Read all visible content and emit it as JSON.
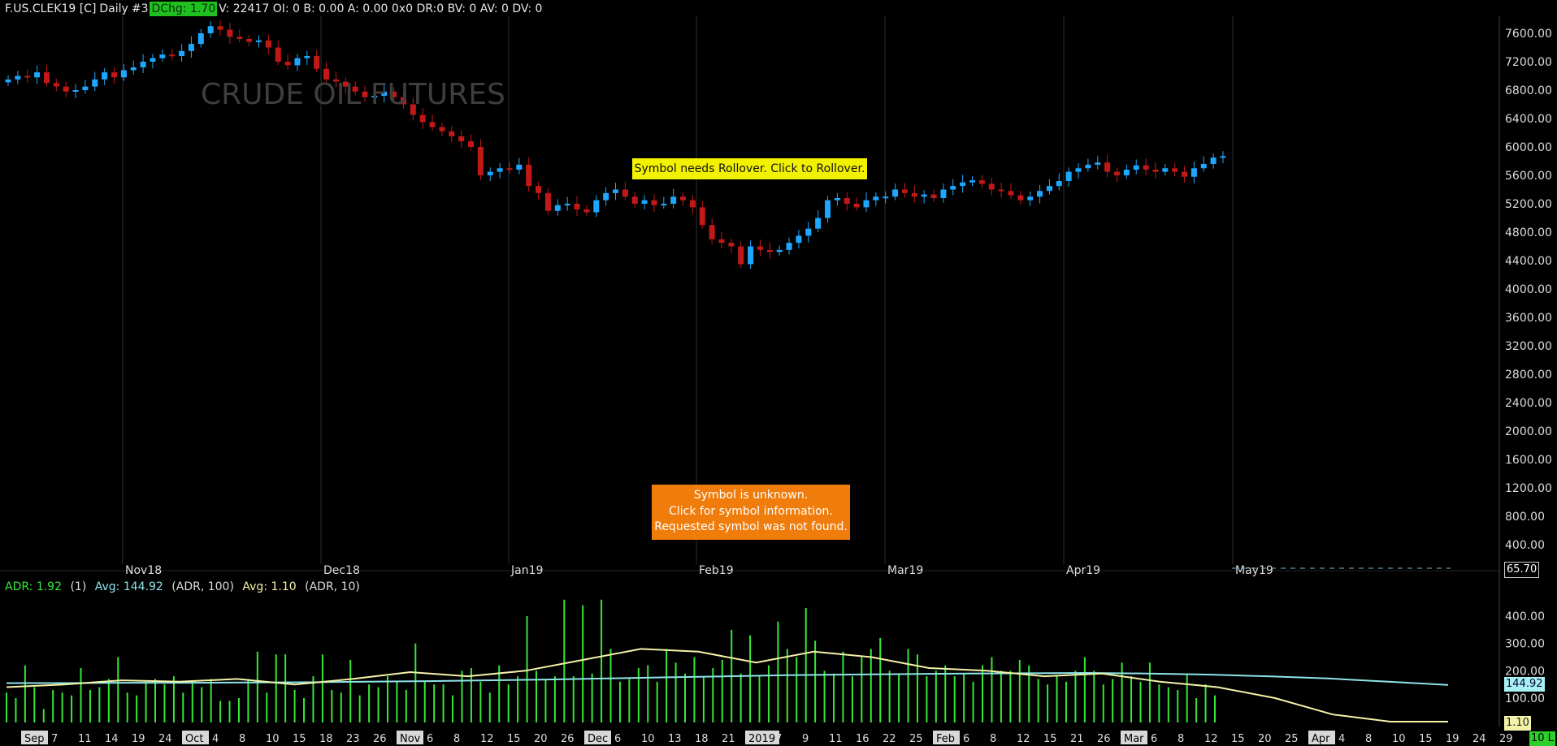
{
  "header": {
    "symbol": "F.US.CLEK19 [C]",
    "interval": "Daily",
    "chart_no": "#3",
    "dchg": "DChg: 1.70",
    "stats": "V: 22417 OI: 0 B: 0.00 A: 0.00 0x0 DR:0 BV: 0 AV: 0 DV: 0"
  },
  "watermark": "CRUDE OIL FUTURES",
  "rollover_banner": "Symbol needs Rollover. Click to Rollover.",
  "unknown_banner": {
    "line1": "Symbol is unknown.",
    "line2": "Click for symbol information.",
    "line3": "Requested symbol was not found."
  },
  "indicator": {
    "adr": "ADR: 1.92",
    "param": "(1)",
    "avg1": "Avg: 144.92",
    "avg1_params": "(ADR, 100)",
    "avg2": "Avg: 1.10",
    "avg2_params": "(ADR, 10)"
  },
  "value_boxes": {
    "price": "65.70",
    "avg100": "144.92",
    "avg10": "1.10",
    "corner": "10 L"
  },
  "colors": {
    "up_candle": "#1ea7ff",
    "down_candle": "#c21818",
    "adr_bars": "#36e836",
    "avg100_line": "#8fe4e8",
    "avg10_line": "#f4f2a8"
  },
  "chart_data": [
    {
      "type": "candlestick",
      "title": "",
      "price_axis_ticks": [
        "7600.00",
        "7200.00",
        "6800.00",
        "6400.00",
        "6000.00",
        "5600.00",
        "5200.00",
        "4800.00",
        "4400.00",
        "4000.00",
        "3600.00",
        "3200.00",
        "2800.00",
        "2400.00",
        "2000.00",
        "1600.00",
        "1200.00",
        "800.00",
        "400.00"
      ],
      "ylim": [
        150,
        7900
      ],
      "month_labels": [
        "Nov18",
        "Dec18",
        "Jan19",
        "Feb19",
        "Mar19",
        "Apr19",
        "May19"
      ],
      "close_series": [
        6950,
        7000,
        6980,
        7050,
        6900,
        6850,
        6780,
        6800,
        6850,
        6950,
        7050,
        6980,
        7080,
        7120,
        7200,
        7250,
        7300,
        7280,
        7350,
        7450,
        7600,
        7700,
        7650,
        7550,
        7520,
        7480,
        7500,
        7400,
        7200,
        7150,
        7250,
        7280,
        7100,
        6950,
        6920,
        6850,
        6780,
        6700,
        6720,
        6780,
        6700,
        6600,
        6450,
        6350,
        6280,
        6220,
        6150,
        6080,
        6000,
        5600,
        5650,
        5700,
        5680,
        5750,
        5450,
        5350,
        5100,
        5180,
        5200,
        5120,
        5080,
        5250,
        5350,
        5400,
        5300,
        5200,
        5250,
        5180,
        5200,
        5300,
        5250,
        5150,
        4900,
        4700,
        4650,
        4600,
        4350,
        4600,
        4550,
        4520,
        4550,
        4650,
        4750,
        4850,
        5000,
        5250,
        5280,
        5200,
        5150,
        5250,
        5300,
        5300,
        5400,
        5350,
        5300,
        5330,
        5280,
        5400,
        5450,
        5500,
        5530,
        5480,
        5400,
        5380,
        5320,
        5250,
        5300,
        5380,
        5450,
        5520,
        5650,
        5700,
        5750,
        5780,
        5650,
        5600,
        5680,
        5740,
        5680,
        5650,
        5700,
        5650,
        5580,
        5700,
        5760,
        5850,
        5870
      ],
      "ohlc_note": "each entry is a daily close in price units; candles drawn from consecutive closes"
    },
    {
      "type": "bar",
      "title": "ADR (1) with Avg (ADR, 100) and Avg (ADR, 10)",
      "value_axis_ticks": [
        "400.00",
        "300.00",
        "200.00",
        "100.00"
      ],
      "ylim": [
        0,
        450
      ],
      "x_tick_labels": [
        "Sep",
        "7",
        "11",
        "14",
        "19",
        "24",
        "Oct",
        "4",
        "8",
        "10",
        "15",
        "18",
        "23",
        "26",
        "Nov",
        "6",
        "8",
        "12",
        "15",
        "20",
        "26",
        "Dec",
        "6",
        "10",
        "13",
        "18",
        "21",
        "2019",
        "7",
        "9",
        "11",
        "16",
        "22",
        "25",
        "Feb",
        "6",
        "8",
        "12",
        "15",
        "21",
        "26",
        "Mar",
        "6",
        "8",
        "12",
        "15",
        "20",
        "25",
        "Apr",
        "4",
        "8",
        "10",
        "15",
        "19",
        "24",
        "29"
      ],
      "series": [
        {
          "name": "ADR",
          "values": [
            120,
            100,
            220,
            140,
            60,
            130,
            120,
            110,
            210,
            130,
            140,
            170,
            250,
            120,
            110,
            160,
            170,
            150,
            180,
            120,
            160,
            140,
            170,
            90,
            90,
            100,
            170,
            270,
            120,
            260,
            260,
            130,
            100,
            180,
            260,
            130,
            120,
            240,
            110,
            150,
            140,
            180,
            160,
            130,
            300,
            160,
            150,
            150,
            110,
            200,
            210,
            160,
            120,
            220,
            150,
            180,
            400,
            200,
            170,
            180,
            460,
            180,
            440,
            190,
            460,
            280,
            160,
            170,
            210,
            220,
            160,
            280,
            230,
            190,
            250,
            180,
            210,
            240,
            350,
            190,
            330,
            180,
            220,
            380,
            280,
            250,
            430,
            310,
            200,
            190,
            270,
            180,
            250,
            280,
            320,
            200,
            190,
            280,
            260,
            180,
            200,
            220,
            180,
            190,
            160,
            220,
            250,
            200,
            200,
            240,
            220,
            170,
            150,
            180,
            160,
            200,
            250,
            200,
            150,
            170,
            230,
            180,
            160,
            230,
            150,
            140,
            130,
            190,
            100,
            150,
            110
          ]
        },
        {
          "name": "Avg (ADR, 100)",
          "values": [
            155,
            155,
            156,
            156,
            157,
            158,
            160,
            162,
            165,
            168,
            172,
            176,
            180,
            184,
            186,
            188,
            190,
            191,
            192,
            190,
            186,
            180,
            172,
            160,
            148
          ]
        },
        {
          "name": "Avg (ADR, 10)",
          "values": [
            140,
            150,
            165,
            160,
            170,
            150,
            170,
            195,
            180,
            200,
            240,
            280,
            270,
            230,
            270,
            250,
            210,
            200,
            180,
            190,
            160,
            140,
            100,
            40,
            5,
            2
          ]
        }
      ]
    }
  ]
}
